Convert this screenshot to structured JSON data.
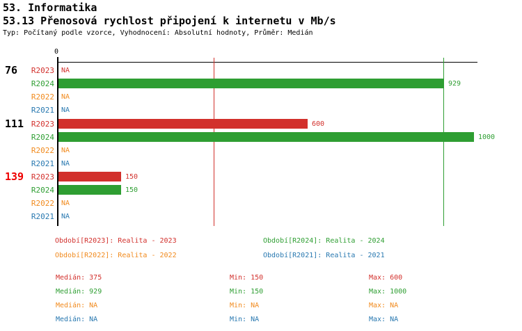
{
  "header": {
    "title1": "53. Informatika",
    "title2": "53.13 Přenosová rychlost připojení k internetu v Mb/s",
    "subtitle": "Typ: Počítaný podle vzorce, Vyhodnocení: Absolutní hodnoty, Průměr: Medián"
  },
  "colors": {
    "series": {
      "R2023": "#d2302c",
      "R2024": "#2e9e32",
      "R2022": "#f18a1d",
      "R2021": "#2878b0"
    },
    "axis": "#000000",
    "text": "#000000",
    "highlight_label": "#ee0000",
    "background": "#ffffff"
  },
  "chart_data": {
    "type": "bar",
    "orientation": "horizontal",
    "unit": "Mb/s",
    "x_domain": [
      0,
      1012
    ],
    "x_tick_labels": [
      "0"
    ],
    "categories": [
      "76",
      "111",
      "139"
    ],
    "highlighted_categories": [
      "139"
    ],
    "series": [
      {
        "name": "R2023",
        "values": [
          null,
          600,
          150
        ]
      },
      {
        "name": "R2024",
        "values": [
          929,
          1000,
          150
        ]
      },
      {
        "name": "R2022",
        "values": [
          null,
          null,
          null
        ]
      },
      {
        "name": "R2021",
        "values": [
          null,
          null,
          null
        ]
      }
    ],
    "na_label": "NA",
    "median_lines": [
      {
        "series": "R2023",
        "value": 375
      },
      {
        "series": "R2024",
        "value": 929
      }
    ],
    "grid": false,
    "legend_position": "bottom"
  },
  "legend": {
    "items": [
      {
        "series": "R2023",
        "label": "Období[R2023]: Realita - 2023"
      },
      {
        "series": "R2024",
        "label": "Období[R2024]: Realita - 2024"
      },
      {
        "series": "R2022",
        "label": "Období[R2022]: Realita - 2022"
      },
      {
        "series": "R2021",
        "label": "Období[R2021]: Realita - 2021"
      }
    ]
  },
  "stats": {
    "labels": {
      "median": "Medián",
      "min": "Min",
      "max": "Max"
    },
    "rows": [
      {
        "series": "R2023",
        "median": "375",
        "min": "150",
        "max": "600"
      },
      {
        "series": "R2024",
        "median": "929",
        "min": "150",
        "max": "1000"
      },
      {
        "series": "R2022",
        "median": "NA",
        "min": "NA",
        "max": "NA"
      },
      {
        "series": "R2021",
        "median": "NA",
        "min": "NA",
        "max": "NA"
      }
    ]
  }
}
